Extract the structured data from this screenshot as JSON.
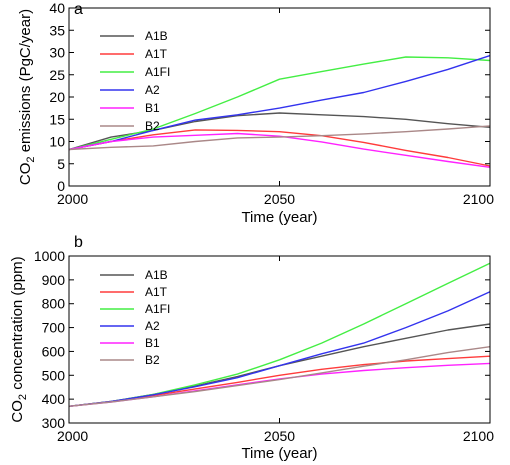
{
  "chart_data": [
    {
      "type": "line",
      "panel_label": "a",
      "xlabel": "Time (year)",
      "ylabel_main": "CO",
      "ylabel_sub": "2",
      "ylabel_rest": " emissions (PgC/year)",
      "xlim": [
        2000,
        2100
      ],
      "ylim": [
        0,
        40
      ],
      "xticks": [
        2000,
        2050,
        2100
      ],
      "yticks": [
        0,
        5,
        10,
        15,
        20,
        25,
        30,
        35,
        40
      ],
      "x": [
        2000,
        2010,
        2020,
        2030,
        2040,
        2050,
        2060,
        2070,
        2080,
        2090,
        2100
      ],
      "legend_position": "top-left",
      "series": [
        {
          "name": "A1B",
          "color": "#555555",
          "values": [
            8.2,
            11.0,
            12.5,
            14.5,
            15.8,
            16.4,
            16.0,
            15.6,
            15.0,
            14.0,
            13.2
          ]
        },
        {
          "name": "A1T",
          "color": "#ff3b3b",
          "values": [
            8.2,
            10.0,
            11.5,
            12.6,
            12.5,
            12.2,
            11.3,
            9.8,
            8.0,
            6.4,
            4.5
          ]
        },
        {
          "name": "A1FI",
          "color": "#44ee44",
          "values": [
            8.2,
            10.5,
            12.8,
            16.3,
            20.0,
            24.0,
            25.7,
            27.4,
            29.0,
            28.8,
            28.2
          ]
        },
        {
          "name": "A2",
          "color": "#3333ee",
          "values": [
            8.2,
            10.0,
            12.5,
            14.8,
            16.0,
            17.5,
            19.3,
            21.0,
            23.5,
            26.2,
            29.3
          ]
        },
        {
          "name": "B1",
          "color": "#ff22ff",
          "values": [
            8.2,
            10.0,
            11.0,
            11.4,
            11.8,
            11.2,
            9.9,
            8.3,
            6.9,
            5.5,
            4.2
          ]
        },
        {
          "name": "B2",
          "color": "#aa8888",
          "values": [
            8.2,
            8.7,
            9.0,
            10.0,
            10.8,
            11.0,
            11.3,
            11.7,
            12.2,
            12.8,
            13.5
          ]
        }
      ]
    },
    {
      "type": "line",
      "panel_label": "b",
      "xlabel": "Time (year)",
      "ylabel_main": "CO",
      "ylabel_sub": "2",
      "ylabel_rest": " concentration (ppm)",
      "xlim": [
        2000,
        2100
      ],
      "ylim": [
        300,
        1000
      ],
      "xticks": [
        2000,
        2050,
        2100
      ],
      "yticks": [
        300,
        400,
        500,
        600,
        700,
        800,
        900,
        1000
      ],
      "x": [
        2000,
        2010,
        2020,
        2030,
        2040,
        2050,
        2060,
        2070,
        2080,
        2090,
        2100
      ],
      "legend_position": "top-left",
      "series": [
        {
          "name": "A1B",
          "color": "#555555",
          "values": [
            370,
            390,
            420,
            455,
            495,
            540,
            580,
            620,
            655,
            690,
            715
          ]
        },
        {
          "name": "A1T",
          "color": "#ff3b3b",
          "values": [
            370,
            390,
            415,
            443,
            470,
            500,
            525,
            545,
            560,
            570,
            580
          ]
        },
        {
          "name": "A1FI",
          "color": "#44ee44",
          "values": [
            370,
            390,
            420,
            460,
            505,
            565,
            635,
            715,
            800,
            885,
            970
          ]
        },
        {
          "name": "A2",
          "color": "#3333ee",
          "values": [
            370,
            390,
            418,
            452,
            490,
            540,
            590,
            635,
            700,
            770,
            850
          ]
        },
        {
          "name": "B1",
          "color": "#ff22ff",
          "values": [
            370,
            388,
            410,
            435,
            460,
            485,
            505,
            520,
            532,
            542,
            550
          ]
        },
        {
          "name": "B2",
          "color": "#aa8888",
          "values": [
            370,
            388,
            410,
            432,
            457,
            482,
            510,
            538,
            565,
            595,
            620
          ]
        }
      ]
    }
  ]
}
